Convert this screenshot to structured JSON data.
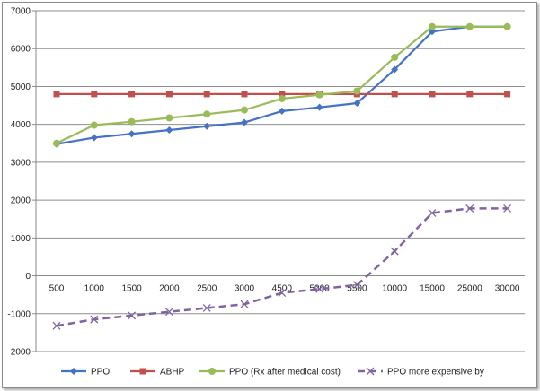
{
  "chart_data": {
    "type": "line",
    "categories": [
      "500",
      "1000",
      "1500",
      "2000",
      "2500",
      "3000",
      "4500",
      "5000",
      "5500",
      "10000",
      "15000",
      "25000",
      "30000"
    ],
    "ylim": [
      -2000,
      7000
    ],
    "yticks": [
      "-2000",
      "-1000",
      "0",
      "1000",
      "2000",
      "3000",
      "4000",
      "5000",
      "6000",
      "7000"
    ],
    "grid": true,
    "legend_position": "bottom",
    "series": [
      {
        "name": "PPO",
        "color": "#4472C4",
        "marker": "diamond",
        "dash": false,
        "values": [
          3480,
          3650,
          3750,
          3850,
          3950,
          4050,
          4350,
          4450,
          4560,
          5450,
          6450,
          6580,
          6580
        ]
      },
      {
        "name": "ABHP",
        "color": "#C0504D",
        "marker": "square",
        "dash": false,
        "values": [
          4800,
          4800,
          4800,
          4800,
          4800,
          4800,
          4800,
          4800,
          4800,
          4800,
          4800,
          4800,
          4800
        ]
      },
      {
        "name": "PPO (Rx after medical cost)",
        "color": "#9BBB59",
        "marker": "circle",
        "dash": false,
        "values": [
          3500,
          3980,
          4070,
          4170,
          4270,
          4380,
          4680,
          4780,
          4880,
          5770,
          6580,
          6580,
          6580
        ]
      },
      {
        "name": "PPO more expensive by",
        "color": "#8064A2",
        "marker": "x",
        "dash": true,
        "values": [
          -1320,
          -1150,
          -1050,
          -950,
          -850,
          -750,
          -450,
          -350,
          -240,
          650,
          1660,
          1780,
          1780
        ]
      }
    ]
  }
}
